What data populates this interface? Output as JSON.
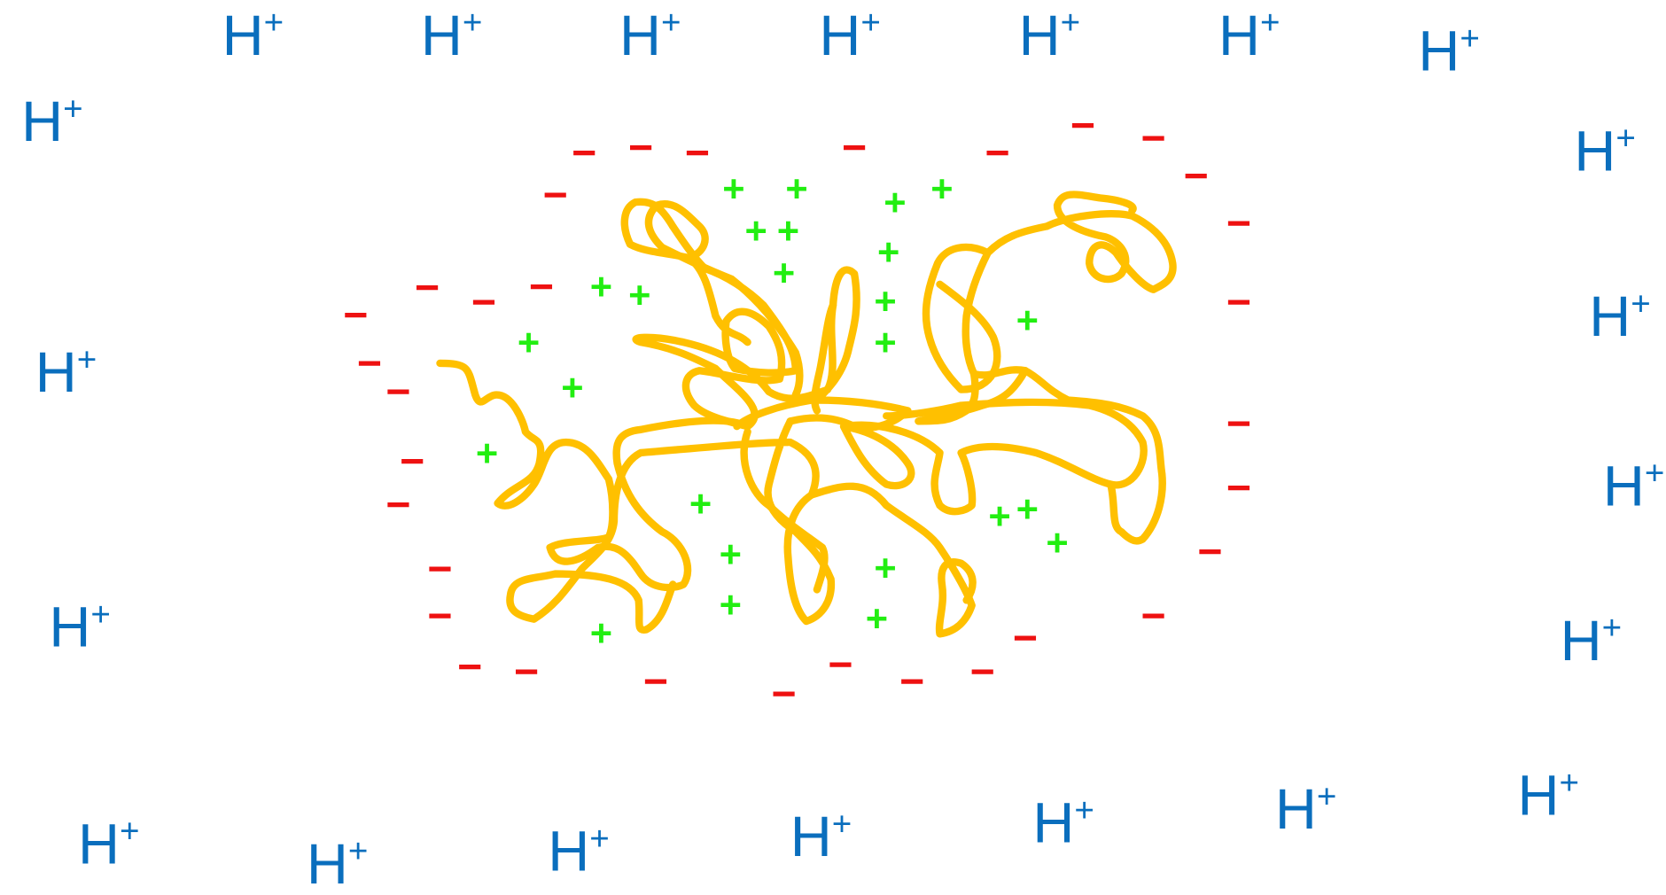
{
  "ions": [
    {
      "symbol": "H",
      "charge": "+"
    },
    {
      "symbol": "H",
      "charge": "+"
    },
    {
      "symbol": "H",
      "charge": "+"
    },
    {
      "symbol": "H",
      "charge": "+"
    },
    {
      "symbol": "H",
      "charge": "+"
    },
    {
      "symbol": "H",
      "charge": "+"
    },
    {
      "symbol": "H",
      "charge": "+"
    },
    {
      "symbol": "H",
      "charge": "+"
    },
    {
      "symbol": "H",
      "charge": "+"
    },
    {
      "symbol": "H",
      "charge": "+"
    },
    {
      "symbol": "H",
      "charge": "+"
    },
    {
      "symbol": "H",
      "charge": "+"
    },
    {
      "symbol": "H",
      "charge": "+"
    },
    {
      "symbol": "H",
      "charge": "+"
    },
    {
      "symbol": "H",
      "charge": "+"
    },
    {
      "symbol": "H",
      "charge": "+"
    },
    {
      "symbol": "H",
      "charge": "+"
    },
    {
      "symbol": "H",
      "charge": "+"
    },
    {
      "symbol": "H",
      "charge": "+"
    },
    {
      "symbol": "H",
      "charge": "+"
    },
    {
      "symbol": "H",
      "charge": "+"
    }
  ],
  "positive_charges": [
    "+",
    "+",
    "+",
    "+",
    "+",
    "+",
    "+",
    "+",
    "+",
    "+",
    "+",
    "+",
    "+",
    "+",
    "+",
    "+",
    "+",
    "+",
    "+",
    "+",
    "+",
    "+",
    "+",
    "+",
    "+"
  ],
  "negative_charges": [
    "−",
    "−",
    "−",
    "−",
    "−",
    "−",
    "−",
    "−",
    "−",
    "−",
    "−",
    "−",
    "−",
    "−",
    "−",
    "−",
    "−",
    "−",
    "−",
    "−",
    "−",
    "−",
    "−",
    "−",
    "−",
    "−",
    "−",
    "−",
    "−",
    "−",
    "−",
    "−",
    "−"
  ]
}
